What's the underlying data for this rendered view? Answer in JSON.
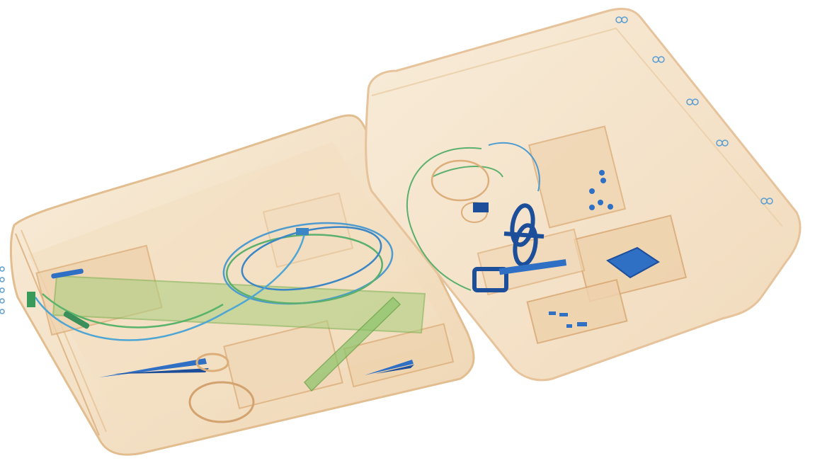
{
  "image": {
    "kind": "x-ray security scan",
    "background": "#ffffff",
    "palette": {
      "organic_light": "#f6e6cf",
      "organic_mid": "#eccfa8",
      "organic_edge": "#dcae7a",
      "mixed_green": "#7fbf5a",
      "mixed_green_dark": "#4f9e3a",
      "metal_blue": "#2f6fc4",
      "metal_blue_dark": "#1c4e9a",
      "speckle": "#a8d6e6"
    }
  }
}
